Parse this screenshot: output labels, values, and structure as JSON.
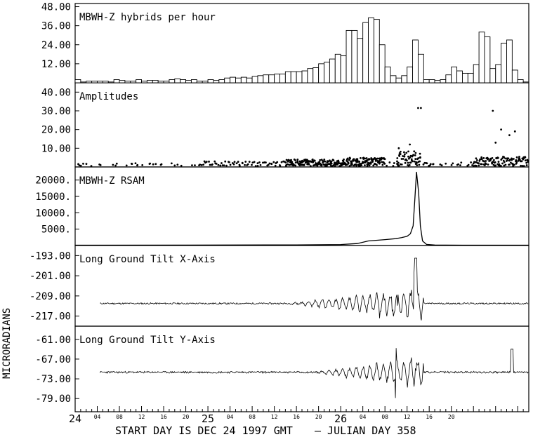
{
  "footer": {
    "start_text": "START DAY IS DEC 24 1997 GMT",
    "julian_text": "– JULIAN DAY 358"
  },
  "y_axis_title": "MICRORADIANS",
  "x_axis": {
    "day_labels": [
      "24",
      "25",
      "26"
    ],
    "hour_labels": [
      "04",
      "08",
      "12",
      "16",
      "20",
      "04",
      "08",
      "12",
      "16",
      "20",
      "04",
      "08",
      "12",
      "16",
      "20"
    ]
  },
  "chart_data": [
    {
      "type": "bar",
      "title": "MBWH-Z hybrids per hour",
      "ylim": [
        0,
        50
      ],
      "yticks": [
        "48.00",
        "36.00",
        "24.00",
        "12.00"
      ],
      "ytick_values": [
        48,
        36,
        24,
        12
      ],
      "x_unit": "hours since start",
      "bars": [
        {
          "x": 0,
          "h": 2
        },
        {
          "x": 1,
          "h": 0.5
        },
        {
          "x": 2,
          "h": 1
        },
        {
          "x": 3,
          "h": 1
        },
        {
          "x": 4,
          "h": 1
        },
        {
          "x": 5,
          "h": 1
        },
        {
          "x": 6,
          "h": 0.5
        },
        {
          "x": 7,
          "h": 2
        },
        {
          "x": 8,
          "h": 1.5
        },
        {
          "x": 9,
          "h": 1
        },
        {
          "x": 10,
          "h": 1
        },
        {
          "x": 11,
          "h": 2
        },
        {
          "x": 12,
          "h": 1
        },
        {
          "x": 13,
          "h": 1.5
        },
        {
          "x": 14,
          "h": 1.5
        },
        {
          "x": 15,
          "h": 1
        },
        {
          "x": 16,
          "h": 1
        },
        {
          "x": 17,
          "h": 2
        },
        {
          "x": 18,
          "h": 2.5
        },
        {
          "x": 19,
          "h": 2
        },
        {
          "x": 20,
          "h": 1.5
        },
        {
          "x": 21,
          "h": 2
        },
        {
          "x": 22,
          "h": 1
        },
        {
          "x": 23,
          "h": 1
        },
        {
          "x": 24,
          "h": 2
        },
        {
          "x": 25,
          "h": 1.5
        },
        {
          "x": 26,
          "h": 2
        },
        {
          "x": 27,
          "h": 3
        },
        {
          "x": 28,
          "h": 3.5
        },
        {
          "x": 29,
          "h": 3
        },
        {
          "x": 30,
          "h": 3.5
        },
        {
          "x": 31,
          "h": 3
        },
        {
          "x": 32,
          "h": 4
        },
        {
          "x": 33,
          "h": 4.5
        },
        {
          "x": 34,
          "h": 5
        },
        {
          "x": 35,
          "h": 5
        },
        {
          "x": 36,
          "h": 5.5
        },
        {
          "x": 37,
          "h": 5.5
        },
        {
          "x": 38,
          "h": 7
        },
        {
          "x": 39,
          "h": 7
        },
        {
          "x": 40,
          "h": 7
        },
        {
          "x": 41,
          "h": 7.5
        },
        {
          "x": 42,
          "h": 9
        },
        {
          "x": 43,
          "h": 9.5
        },
        {
          "x": 44,
          "h": 12
        },
        {
          "x": 45,
          "h": 13
        },
        {
          "x": 46,
          "h": 15
        },
        {
          "x": 47,
          "h": 18
        },
        {
          "x": 48,
          "h": 17
        },
        {
          "x": 49,
          "h": 33
        },
        {
          "x": 50,
          "h": 33
        },
        {
          "x": 51,
          "h": 28
        },
        {
          "x": 52,
          "h": 38
        },
        {
          "x": 53,
          "h": 41
        },
        {
          "x": 54,
          "h": 40
        },
        {
          "x": 55,
          "h": 24
        },
        {
          "x": 56,
          "h": 10
        },
        {
          "x": 57,
          "h": 4.5
        },
        {
          "x": 58,
          "h": 3
        },
        {
          "x": 59,
          "h": 4.5
        },
        {
          "x": 60,
          "h": 10
        },
        {
          "x": 61,
          "h": 27
        },
        {
          "x": 62,
          "h": 18
        },
        {
          "x": 63,
          "h": 2
        },
        {
          "x": 64,
          "h": 2
        },
        {
          "x": 65,
          "h": 1.5
        },
        {
          "x": 66,
          "h": 2
        },
        {
          "x": 67,
          "h": 5
        },
        {
          "x": 68,
          "h": 10
        },
        {
          "x": 69,
          "h": 7.5
        },
        {
          "x": 70,
          "h": 6
        },
        {
          "x": 71,
          "h": 6
        },
        {
          "x": 72,
          "h": 11.5
        },
        {
          "x": 73,
          "h": 32
        },
        {
          "x": 74,
          "h": 29
        },
        {
          "x": 75,
          "h": 9
        },
        {
          "x": 76,
          "h": 11.5
        },
        {
          "x": 77,
          "h": 25
        },
        {
          "x": 78,
          "h": 27
        },
        {
          "x": 79,
          "h": 8
        },
        {
          "x": 80,
          "h": 2
        },
        {
          "x": 81,
          "h": 0.5
        }
      ]
    },
    {
      "type": "scatter",
      "title": "Amplitudes",
      "ylim": [
        0,
        45
      ],
      "yticks": [
        "40.00",
        "30.00",
        "20.00",
        "10.00"
      ],
      "ytick_values": [
        40,
        30,
        20,
        10
      ],
      "x_unit": "hours since start",
      "highlights": [
        {
          "x": 62.0,
          "y": 31.5
        },
        {
          "x": 62.5,
          "y": 31.5
        },
        {
          "x": 75.5,
          "y": 30
        },
        {
          "x": 79.5,
          "y": 19
        },
        {
          "x": 77.0,
          "y": 20
        },
        {
          "x": 58.5,
          "y": 10
        },
        {
          "x": 60.5,
          "y": 12
        },
        {
          "x": 76.0,
          "y": 13
        },
        {
          "x": 78.5,
          "y": 17
        }
      ]
    },
    {
      "type": "line",
      "title": "MBWH-Z RSAM",
      "ylim": [
        0,
        24000
      ],
      "yticks": [
        "20000.",
        "15000.",
        "10000.",
        "5000."
      ],
      "ytick_values": [
        20000,
        15000,
        10000,
        5000
      ],
      "x_unit": "hours since start",
      "points": [
        [
          0,
          100
        ],
        [
          20,
          120
        ],
        [
          40,
          200
        ],
        [
          48,
          300
        ],
        [
          51,
          600
        ],
        [
          53,
          1400
        ],
        [
          56,
          1800
        ],
        [
          58,
          2100
        ],
        [
          59,
          2400
        ],
        [
          60,
          2800
        ],
        [
          60.6,
          3600
        ],
        [
          61.1,
          6000
        ],
        [
          61.4,
          14000
        ],
        [
          61.7,
          22500
        ],
        [
          62.1,
          16000
        ],
        [
          62.4,
          6000
        ],
        [
          62.8,
          1400
        ],
        [
          63.5,
          350
        ],
        [
          65,
          150
        ],
        [
          70,
          100
        ],
        [
          82,
          100
        ]
      ]
    },
    {
      "type": "line",
      "title": "Long Ground Tilt X-Axis",
      "ylim": [
        -221,
        -189
      ],
      "yticks": [
        "-193.00",
        "-201.00",
        "-209.00",
        "-217.00"
      ],
      "ytick_values": [
        -193,
        -201,
        -209,
        -217
      ],
      "x_unit": "hours since start",
      "baseline": -212,
      "active_window": [
        38,
        63
      ],
      "spike": {
        "x": 61.5,
        "y": -194
      }
    },
    {
      "type": "line",
      "title": "Long Ground Tilt Y-Axis",
      "ylim": [
        -83,
        -57
      ],
      "yticks": [
        "-61.00",
        "-67.00",
        "-73.00",
        "-79.00"
      ],
      "ytick_values": [
        -61,
        -67,
        -73,
        -79
      ],
      "x_unit": "hours since start",
      "baseline": -71,
      "active_window": [
        43,
        63
      ],
      "spike": {
        "x": 79.0,
        "y": -64
      }
    }
  ]
}
